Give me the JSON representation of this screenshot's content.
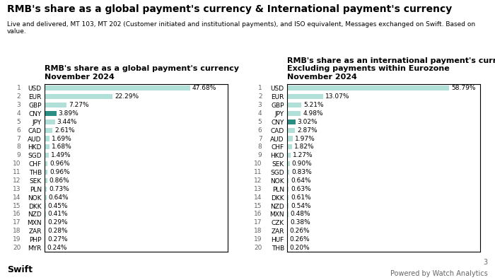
{
  "title": "RMB's share as a global payment's currency & International payment's currency",
  "subtitle": "Live and delivered, MT 103, MT 202 (Customer initiated and institutional payments), and ISO equivalent, Messages exchanged on Swift. Based on value.",
  "annotations": [
    "Swift",
    "3",
    "Powered by Watch Analytics"
  ],
  "chart_data": [
    {
      "type": "bar",
      "orientation": "horizontal",
      "title": "RMB's share as a global payment's currency",
      "subtitle": "November 2024",
      "categories": [
        "USD",
        "EUR",
        "GBP",
        "CNY",
        "JPY",
        "CAD",
        "AUD",
        "HKD",
        "SGD",
        "CHF",
        "THB",
        "SEK",
        "PLN",
        "NOK",
        "DKK",
        "NZD",
        "MXN",
        "ZAR",
        "PHP",
        "MYR"
      ],
      "ranks": [
        1,
        2,
        3,
        4,
        5,
        6,
        7,
        8,
        9,
        10,
        11,
        12,
        13,
        14,
        15,
        16,
        17,
        18,
        19,
        20
      ],
      "values": [
        47.68,
        22.29,
        7.27,
        3.89,
        3.44,
        2.61,
        1.69,
        1.68,
        1.49,
        0.96,
        0.96,
        0.86,
        0.73,
        0.64,
        0.45,
        0.41,
        0.29,
        0.28,
        0.27,
        0.24
      ],
      "value_labels": [
        "47.68%",
        "22.29%",
        "7.27%",
        "3.89%",
        "3.44%",
        "2.61%",
        "1.69%",
        "1.68%",
        "1.49%",
        "0.96%",
        "0.96%",
        "0.86%",
        "0.73%",
        "0.64%",
        "0.45%",
        "0.41%",
        "0.29%",
        "0.28%",
        "0.27%",
        "0.24%"
      ],
      "colors": [
        "#b0e0d8",
        "#b0e0d8",
        "#b0e0d8",
        "#2a8f82",
        "#b0e0d8",
        "#b0e0d8",
        "#b0e0d8",
        "#b0e0d8",
        "#b0e0d8",
        "#b0e0d8",
        "#b0e0d8",
        "#b0e0d8",
        "#b0e0d8",
        "#b0e0d8",
        "#b0e0d8",
        "#b0e0d8",
        "#b0e0d8",
        "#b0e0d8",
        "#b0e0d8",
        "#b0e0d8"
      ],
      "xlim": [
        0,
        60
      ],
      "tick_labels": "y",
      "data_labels": true
    },
    {
      "type": "bar",
      "orientation": "horizontal",
      "title": "RMB's share as an international payment's currency -\nExcluding payments within Eurozone",
      "subtitle": "November 2024",
      "categories": [
        "USD",
        "EUR",
        "GBP",
        "JPY",
        "CNY",
        "CAD",
        "AUD",
        "CHF",
        "HKD",
        "SEK",
        "SGD",
        "NOK",
        "PLN",
        "DKK",
        "NZD",
        "MXN",
        "CZK",
        "ZAR",
        "HUF",
        "THB"
      ],
      "ranks": [
        1,
        2,
        3,
        4,
        5,
        6,
        7,
        8,
        9,
        10,
        11,
        12,
        13,
        14,
        15,
        16,
        17,
        18,
        19,
        20
      ],
      "values": [
        58.79,
        13.07,
        5.21,
        4.98,
        3.02,
        2.87,
        1.97,
        1.82,
        1.27,
        0.9,
        0.83,
        0.64,
        0.63,
        0.61,
        0.54,
        0.48,
        0.38,
        0.26,
        0.26,
        0.2
      ],
      "value_labels": [
        "58.79%",
        "13.07%",
        "5.21%",
        "4.98%",
        "3.02%",
        "2.87%",
        "1.97%",
        "1.82%",
        "1.27%",
        "0.90%",
        "0.83%",
        "0.64%",
        "0.63%",
        "0.61%",
        "0.54%",
        "0.48%",
        "0.38%",
        "0.26%",
        "0.26%",
        "0.20%"
      ],
      "colors": [
        "#b0e0d8",
        "#b0e0d8",
        "#b0e0d8",
        "#b0e0d8",
        "#2a8f82",
        "#b0e0d8",
        "#b0e0d8",
        "#b0e0d8",
        "#b0e0d8",
        "#b0e0d8",
        "#b0e0d8",
        "#b0e0d8",
        "#b0e0d8",
        "#b0e0d8",
        "#b0e0d8",
        "#b0e0d8",
        "#b0e0d8",
        "#b0e0d8",
        "#b0e0d8",
        "#b0e0d8"
      ],
      "xlim": [
        0,
        70
      ],
      "tick_labels": "y",
      "data_labels": true
    }
  ]
}
